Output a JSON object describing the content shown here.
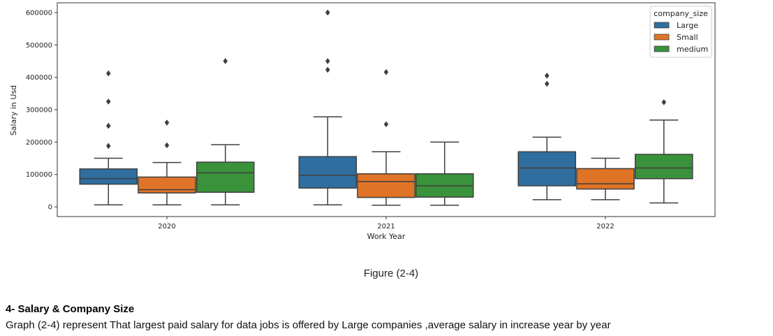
{
  "chart_data": {
    "type": "box",
    "xlabel": "Work Year",
    "ylabel": "Salary in Usd",
    "categories": [
      "2020",
      "2021",
      "2022"
    ],
    "ylim": [
      -30000,
      630000
    ],
    "yticks": [
      0,
      100000,
      200000,
      300000,
      400000,
      500000,
      600000
    ],
    "ytick_labels": [
      "0",
      "100000",
      "200000",
      "300000",
      "400000",
      "500000",
      "600000"
    ],
    "legend": {
      "title": "company_size",
      "placement": "top-right"
    },
    "series": [
      {
        "name": "Large",
        "color": "#2f6e9f",
        "boxes": [
          {
            "category": "2020",
            "whisker_low": 6000,
            "q1": 70000,
            "median": 87000,
            "q3": 117000,
            "whisker_high": 150000,
            "outliers": [
              188000,
              250000,
              325000,
              412000
            ]
          },
          {
            "category": "2021",
            "whisker_low": 6000,
            "q1": 58000,
            "median": 97000,
            "q3": 155000,
            "whisker_high": 278000,
            "outliers": [
              423000,
              450000,
              600000
            ]
          },
          {
            "category": "2022",
            "whisker_low": 22000,
            "q1": 65000,
            "median": 120000,
            "q3": 170000,
            "whisker_high": 215000,
            "outliers": [
              380000,
              405000
            ]
          }
        ]
      },
      {
        "name": "Small",
        "color": "#df7427",
        "boxes": [
          {
            "category": "2020",
            "whisker_low": 6000,
            "q1": 43000,
            "median": 53000,
            "q3": 92000,
            "whisker_high": 137000,
            "outliers": [
              190000,
              260000
            ]
          },
          {
            "category": "2021",
            "whisker_low": 5000,
            "q1": 29000,
            "median": 78000,
            "q3": 102000,
            "whisker_high": 170000,
            "outliers": [
              255000,
              416000
            ]
          },
          {
            "category": "2022",
            "whisker_low": 22000,
            "q1": 55000,
            "median": 71000,
            "q3": 118000,
            "whisker_high": 150000,
            "outliers": []
          }
        ]
      },
      {
        "name": "medium",
        "color": "#3a923a",
        "boxes": [
          {
            "category": "2020",
            "whisker_low": 6000,
            "q1": 45000,
            "median": 105000,
            "q3": 138000,
            "whisker_high": 192000,
            "outliers": [
              450000
            ]
          },
          {
            "category": "2021",
            "whisker_low": 5000,
            "q1": 30000,
            "median": 65000,
            "q3": 102000,
            "whisker_high": 200000,
            "outliers": []
          },
          {
            "category": "2022",
            "whisker_low": 12000,
            "q1": 87000,
            "median": 120000,
            "q3": 162000,
            "whisker_high": 268000,
            "outliers": [
              323000
            ]
          }
        ]
      }
    ]
  },
  "caption": "Figure (2-4)",
  "section": {
    "heading": "4- Salary & Company Size",
    "paragraph": "Graph (2-4) represent That largest paid salary for data jobs is offered by Large companies ,average salary in increase year by year"
  }
}
